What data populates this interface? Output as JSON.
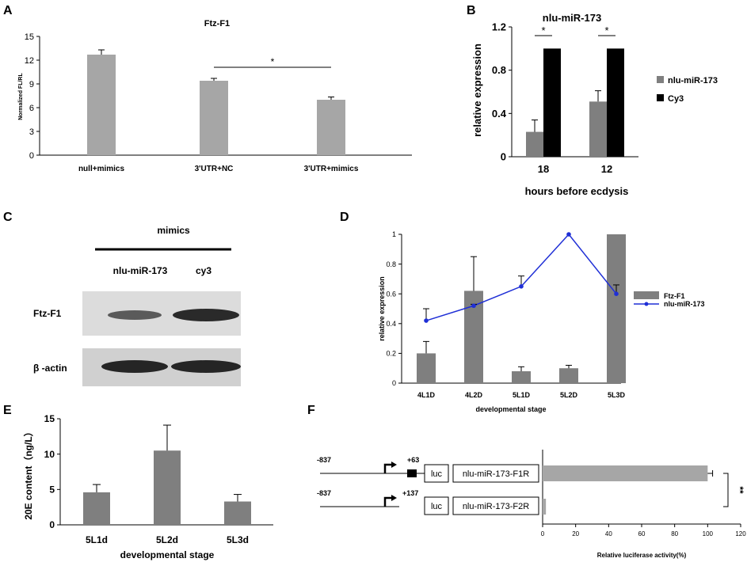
{
  "panels": {
    "A": "A",
    "B": "B",
    "C": "C",
    "D": "D",
    "E": "E",
    "F": "F"
  },
  "colors": {
    "bar_light": "#a6a6a6",
    "bar_dark": "#7f7f7f",
    "bar_black": "#000000",
    "line_blue": "#1f2fd6",
    "axis": "#000000"
  },
  "chart_data": [
    {
      "id": "A",
      "type": "bar",
      "title": "Ftz-F1",
      "ylabel": "Normalized FL/RL",
      "xlabel": "",
      "categories": [
        "null+mimics",
        "3'UTR+NC",
        "3'UTR+mimics"
      ],
      "values": [
        12.7,
        9.4,
        7.0
      ],
      "errors": [
        0.6,
        0.3,
        0.35
      ],
      "ylim": [
        0,
        15
      ],
      "yticks": [
        "0",
        "3",
        "6",
        "9",
        "12",
        "15"
      ],
      "significance": [
        {
          "label": "*",
          "between": [
            1,
            2
          ]
        }
      ]
    },
    {
      "id": "B",
      "type": "bar",
      "title": "nlu-miR-173",
      "ylabel": "relative expression",
      "xlabel": "hours before ecdysis",
      "categories": [
        "18",
        "12"
      ],
      "series": [
        {
          "name": "nlu-miR-173",
          "values": [
            0.23,
            0.51
          ],
          "errors": [
            0.11,
            0.1
          ]
        },
        {
          "name": "Cy3",
          "values": [
            1.0,
            1.0
          ],
          "errors": [
            0,
            0
          ]
        }
      ],
      "ylim": [
        0,
        1.2
      ],
      "yticks": [
        "0",
        "0.4",
        "0.8",
        "1.2"
      ],
      "significance": [
        "*",
        "*"
      ]
    },
    {
      "id": "D",
      "type": "bar",
      "title": "",
      "ylabel": "relative expression",
      "xlabel": "developmental stage",
      "categories": [
        "4L1D",
        "4L2D",
        "5L1D",
        "5L2D",
        "5L3D"
      ],
      "series": [
        {
          "name": "Ftz-F1",
          "kind": "bar",
          "values": [
            0.2,
            0.62,
            0.08,
            0.1,
            1.0
          ],
          "errors": [
            0.08,
            0.23,
            0.03,
            0.02,
            0.0
          ]
        },
        {
          "name": "nlu-miR-173",
          "kind": "line",
          "values": [
            0.42,
            0.52,
            0.65,
            1.0,
            0.6
          ],
          "errors": [
            0.08,
            0.01,
            0.07,
            0.0,
            0.06
          ]
        }
      ],
      "ylim": [
        0,
        1
      ],
      "yticks": [
        "0",
        "0.2",
        "0.4",
        "0.6",
        "0.8",
        "1"
      ]
    },
    {
      "id": "E",
      "type": "bar",
      "title": "",
      "ylabel": "20E content（ng/L）",
      "xlabel": "developmental stage",
      "categories": [
        "5L1d",
        "5L2d",
        "5L3d"
      ],
      "values": [
        4.6,
        10.5,
        3.3
      ],
      "errors": [
        1.1,
        3.6,
        1.0
      ],
      "ylim": [
        0,
        15
      ],
      "yticks": [
        "0",
        "5",
        "10",
        "15"
      ]
    },
    {
      "id": "F",
      "type": "bar",
      "orientation": "horizontal",
      "title": "",
      "xlabel": "Relative luciferase activity(%)",
      "categories": [
        "nlu-miR-173-F1R",
        "nlu-miR-173-F2R"
      ],
      "values": [
        100,
        2
      ],
      "errors": [
        3,
        0.3
      ],
      "xlim": [
        0,
        120
      ],
      "xticks": [
        "0",
        "20",
        "40",
        "60",
        "80",
        "100",
        "120"
      ],
      "constructs": [
        {
          "start": "-837",
          "end": "+63",
          "luc": "luc",
          "name": "nlu-miR-173-F1R"
        },
        {
          "start": "-837",
          "end": "+137",
          "luc": "luc",
          "name": "nlu-miR-173-F2R"
        }
      ],
      "significance": "**"
    }
  ],
  "blot": {
    "header": "mimics",
    "lanes": [
      "nlu-miR-173",
      "cy3"
    ],
    "rows": [
      "Ftz-F1",
      "β -actin"
    ]
  }
}
